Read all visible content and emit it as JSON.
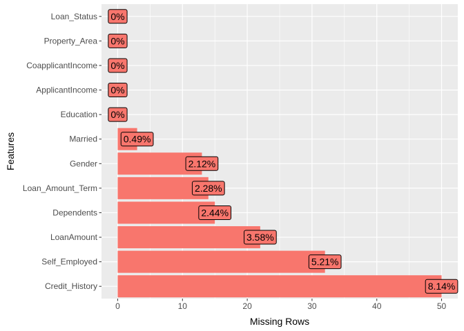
{
  "chart_data": {
    "type": "bar",
    "orientation": "horizontal",
    "categories": [
      "Credit_History",
      "Self_Employed",
      "LoanAmount",
      "Dependents",
      "Loan_Amount_Term",
      "Gender",
      "Married",
      "Education",
      "ApplicantIncome",
      "CoapplicantIncome",
      "Property_Area",
      "Loan_Status"
    ],
    "values": [
      50,
      32,
      22,
      15,
      14,
      13,
      3,
      0,
      0,
      0,
      0,
      0
    ],
    "labels": [
      "8.14%",
      "5.21%",
      "3.58%",
      "2.44%",
      "2.28%",
      "2.12%",
      "0.49%",
      "0%",
      "0%",
      "0%",
      "0%",
      "0%"
    ],
    "xlabel": "Missing Rows",
    "ylabel": "Features",
    "xlim": [
      -2.5,
      52.5
    ],
    "xticks": [
      0,
      10,
      20,
      30,
      40,
      50
    ],
    "grid": true,
    "legend": "none",
    "colors": {
      "bar": "#F8766D",
      "panel_bg": "#EBEBEB",
      "grid_major": "#FFFFFF",
      "label_fill": "#F8766D",
      "label_border": "#000000"
    }
  }
}
